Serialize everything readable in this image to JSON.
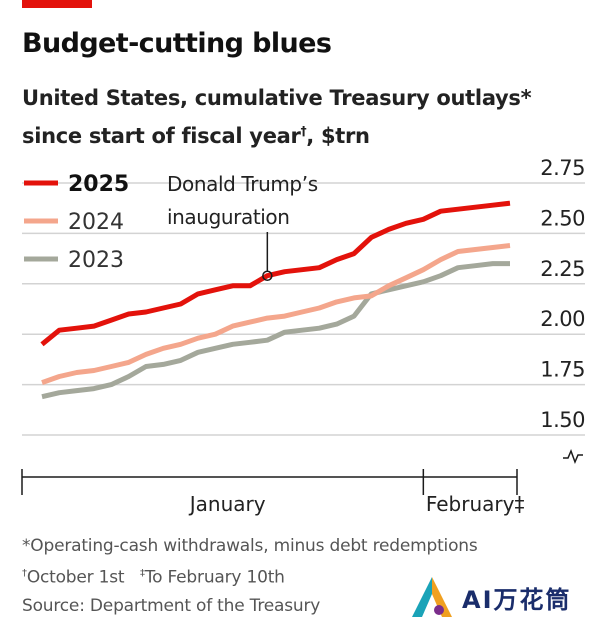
{
  "header": {
    "title": "Budget-cutting blues",
    "subtitle_line1": "United States, cumulative Treasury outlays*",
    "subtitle_line2_a": "since start of fiscal year",
    "subtitle_line2_mark": "†",
    "subtitle_line2_b": ", $trn"
  },
  "annotation": {
    "line1": "Donald Trump’s",
    "line2": "inauguration"
  },
  "notes": {
    "note1": "*Operating-cash withdrawals, minus debt redemptions",
    "note2_mark": "†",
    "note2": "October 1st",
    "note3_mark": "‡",
    "note3": "To February 10th",
    "source": "Source: Department of the Treasury"
  },
  "logo": {
    "text": "AI万花筒"
  },
  "colors": {
    "2025": "#e3120b",
    "2024": "#f4a68c",
    "2023": "#a4a89b",
    "grid": "#d3d3d3",
    "axis": "#1b1b1b",
    "brand": "#e3120b"
  },
  "chart_data": {
    "type": "line",
    "x_axis_labels": [
      "January",
      "February‡"
    ],
    "x": [
      "Dec 31",
      "Jan 1",
      "Jan 2",
      "Jan 3",
      "Jan 6",
      "Jan 7",
      "Jan 8",
      "Jan 10",
      "Jan 13",
      "Jan 14",
      "Jan 15",
      "Jan 16",
      "Jan 17",
      "Jan 21",
      "Jan 22",
      "Jan 23",
      "Jan 24",
      "Jan 27",
      "Jan 28",
      "Jan 29",
      "Jan 30",
      "Jan 31",
      "Feb 3",
      "Feb 4",
      "Feb 5",
      "Feb 6",
      "Feb 7",
      "Feb 10"
    ],
    "series": [
      {
        "name": "2025",
        "values": [
          1.95,
          2.02,
          2.03,
          2.04,
          2.07,
          2.1,
          2.11,
          2.13,
          2.15,
          2.2,
          2.22,
          2.24,
          2.24,
          2.29,
          2.31,
          2.32,
          2.33,
          2.37,
          2.4,
          2.48,
          2.52,
          2.55,
          2.57,
          2.61,
          2.62,
          2.63,
          2.64,
          2.65
        ]
      },
      {
        "name": "2024",
        "values": [
          1.76,
          1.79,
          1.81,
          1.82,
          1.84,
          1.86,
          1.9,
          1.93,
          1.95,
          1.98,
          2.0,
          2.04,
          2.06,
          2.08,
          2.09,
          2.11,
          2.13,
          2.16,
          2.18,
          2.19,
          2.24,
          2.28,
          2.32,
          2.37,
          2.41,
          2.42,
          2.43,
          2.44
        ]
      },
      {
        "name": "2023",
        "values": [
          1.69,
          1.71,
          1.72,
          1.73,
          1.75,
          1.79,
          1.84,
          1.85,
          1.87,
          1.91,
          1.93,
          1.95,
          1.96,
          1.97,
          2.01,
          2.02,
          2.03,
          2.05,
          2.09,
          2.2,
          2.22,
          2.24,
          2.26,
          2.29,
          2.33,
          2.34,
          2.35,
          2.35
        ]
      }
    ],
    "ylim": [
      1.5,
      2.75
    ],
    "yticks": [
      "2.75",
      "2.50",
      "2.25",
      "2.00",
      "1.75",
      "1.50"
    ],
    "ytick_values": [
      2.75,
      2.5,
      2.25,
      2.0,
      1.75,
      1.5
    ],
    "inauguration_index": 13,
    "february_index": 22,
    "legend_placement": "top-left",
    "grid": true,
    "axis_break": true
  }
}
